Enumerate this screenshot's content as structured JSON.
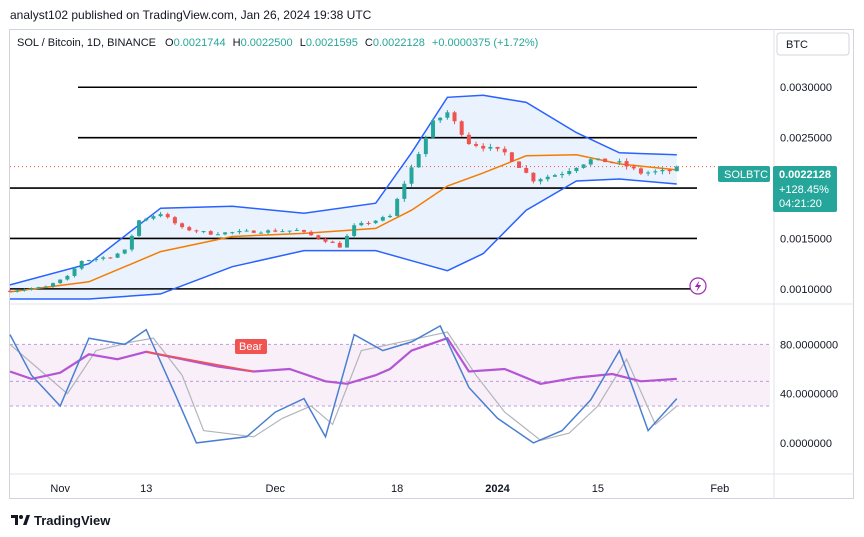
{
  "header": {
    "publish_line": "analyst102 published on TradingView.com, Jan 26, 2024 19:38 UTC"
  },
  "legend": {
    "symbol": "SOL / Bitcoin, 1D, BINANCE",
    "o_label": "O",
    "o_value": "0.0021744",
    "h_label": "H",
    "h_value": "0.0022500",
    "l_label": "L",
    "l_value": "0.0021595",
    "c_label": "C",
    "c_value": "0.0022128",
    "change": "+0.0000375 (+1.72%)"
  },
  "currency_button": "BTC",
  "price_badge": {
    "symbol": "SOLBTC",
    "price": "0.0022128",
    "change_pct": "+128.45%",
    "countdown": "04:21:20"
  },
  "colors": {
    "up": "#26a69a",
    "down": "#ef5350",
    "bb_band": "#2962ff",
    "bb_fill": "#e3effc",
    "bb_basis": "#f57c00",
    "rsi": "#b455d4",
    "stoch_k": "#4a7fd0",
    "stoch_d": "#b2b5be",
    "bear_label": "#f05350",
    "badge": "#26a69a"
  },
  "footer": {
    "brand": "TradingView"
  },
  "chart_data": [
    {
      "type": "candlestick",
      "pane": "price",
      "symbol": "SOLBTC",
      "interval": "1D",
      "y_ticks": [
        "0.0030000",
        "0.0025000",
        "0.0020000",
        "0.0015000",
        "0.0010000"
      ],
      "y_tick_values": [
        0.003,
        0.0025,
        0.002,
        0.0015,
        0.001
      ],
      "ylim": [
        0.00086,
        0.0033
      ],
      "x_ticks": [
        "Nov",
        "13",
        "Dec",
        "18",
        "2024",
        "15",
        "Feb"
      ],
      "x_tick_dates": [
        "2023-11-01",
        "2023-11-13",
        "2023-12-01",
        "2023-12-18",
        "2024-01-01",
        "2024-01-15",
        "2024-02-01"
      ],
      "date_start": "2023-10-25",
      "date_end": "2024-02-08",
      "horizontal_levels": [
        0.003,
        0.0025,
        0.002,
        0.0015,
        0.001
      ],
      "last_price": 0.0022128,
      "anchors": [
        [
          "2023-10-25",
          0.00098
        ],
        [
          "2023-10-30",
          0.00102
        ],
        [
          "2023-11-02",
          0.00112
        ],
        [
          "2023-11-04",
          0.00128
        ],
        [
          "2023-11-08",
          0.00132
        ],
        [
          "2023-11-10",
          0.00138
        ],
        [
          "2023-11-12",
          0.00168
        ],
        [
          "2023-11-15",
          0.00175
        ],
        [
          "2023-11-18",
          0.0016
        ],
        [
          "2023-11-22",
          0.00155
        ],
        [
          "2023-11-28",
          0.00157
        ],
        [
          "2023-12-04",
          0.00158
        ],
        [
          "2023-12-08",
          0.00148
        ],
        [
          "2023-12-10",
          0.00142
        ],
        [
          "2023-12-12",
          0.00162
        ],
        [
          "2023-12-17",
          0.00172
        ],
        [
          "2023-12-19",
          0.00205
        ],
        [
          "2023-12-23",
          0.00265
        ],
        [
          "2023-12-25",
          0.00275
        ],
        [
          "2023-12-28",
          0.00245
        ],
        [
          "2024-01-02",
          0.00235
        ],
        [
          "2024-01-06",
          0.00208
        ],
        [
          "2024-01-10",
          0.00215
        ],
        [
          "2024-01-14",
          0.00228
        ],
        [
          "2024-01-18",
          0.00225
        ],
        [
          "2024-01-21",
          0.00215
        ],
        [
          "2024-01-25",
          0.00217
        ],
        [
          "2024-01-26",
          0.00221
        ]
      ],
      "bollinger": {
        "upper": [
          [
            "2023-10-25",
            0.00104
          ],
          [
            "2023-11-05",
            0.00125
          ],
          [
            "2023-11-15",
            0.0018
          ],
          [
            "2023-11-25",
            0.00182
          ],
          [
            "2023-12-05",
            0.00175
          ],
          [
            "2023-12-15",
            0.00185
          ],
          [
            "2023-12-20",
            0.00235
          ],
          [
            "2023-12-25",
            0.0029
          ],
          [
            "2023-12-30",
            0.00292
          ],
          [
            "2024-01-05",
            0.00285
          ],
          [
            "2024-01-12",
            0.00255
          ],
          [
            "2024-01-18",
            0.00235
          ],
          [
            "2024-01-26",
            0.00233
          ]
        ],
        "basis": [
          [
            "2023-10-25",
            0.00097
          ],
          [
            "2023-11-05",
            0.00107
          ],
          [
            "2023-11-15",
            0.00137
          ],
          [
            "2023-11-25",
            0.00152
          ],
          [
            "2023-12-05",
            0.00155
          ],
          [
            "2023-12-15",
            0.0016
          ],
          [
            "2023-12-20",
            0.00178
          ],
          [
            "2023-12-25",
            0.00202
          ],
          [
            "2023-12-30",
            0.00215
          ],
          [
            "2024-01-05",
            0.00232
          ],
          [
            "2024-01-12",
            0.00233
          ],
          [
            "2024-01-18",
            0.00224
          ],
          [
            "2024-01-26",
            0.00218
          ]
        ],
        "lower": [
          [
            "2023-10-25",
            0.0009
          ],
          [
            "2023-11-05",
            0.0009
          ],
          [
            "2023-11-15",
            0.00095
          ],
          [
            "2023-11-25",
            0.00122
          ],
          [
            "2023-12-05",
            0.00138
          ],
          [
            "2023-12-15",
            0.00138
          ],
          [
            "2023-12-20",
            0.00128
          ],
          [
            "2023-12-25",
            0.00118
          ],
          [
            "2023-12-30",
            0.00135
          ],
          [
            "2024-01-05",
            0.00178
          ],
          [
            "2024-01-12",
            0.00207
          ],
          [
            "2024-01-18",
            0.00209
          ],
          [
            "2024-01-26",
            0.00204
          ]
        ]
      },
      "marker_icon": "lightning-icon"
    },
    {
      "type": "line",
      "pane": "oscillator",
      "y_ticks": [
        "80.0000000",
        "40.0000000",
        "0.0000000"
      ],
      "y_tick_values": [
        80,
        40,
        0
      ],
      "ylim": [
        -22,
        112
      ],
      "bands": {
        "upper": 80,
        "middle": 50,
        "lower": 30
      },
      "annotation": "Bear",
      "series": [
        {
          "role": "rsi",
          "values": [
            [
              "2023-10-25",
              58
            ],
            [
              "2023-10-28",
              52
            ],
            [
              "2023-11-01",
              57
            ],
            [
              "2023-11-05",
              72
            ],
            [
              "2023-11-09",
              68
            ],
            [
              "2023-11-13",
              74
            ],
            [
              "2023-11-18",
              68
            ],
            [
              "2023-11-23",
              62
            ],
            [
              "2023-11-28",
              58
            ],
            [
              "2023-12-03",
              60
            ],
            [
              "2023-12-08",
              50
            ],
            [
              "2023-12-11",
              48
            ],
            [
              "2023-12-15",
              55
            ],
            [
              "2023-12-17",
              60
            ],
            [
              "2023-12-20",
              75
            ],
            [
              "2023-12-25",
              85
            ],
            [
              "2023-12-28",
              58
            ],
            [
              "2024-01-02",
              60
            ],
            [
              "2024-01-07",
              48
            ],
            [
              "2024-01-12",
              53
            ],
            [
              "2024-01-17",
              56
            ],
            [
              "2024-01-21",
              50
            ],
            [
              "2024-01-26",
              52
            ]
          ]
        },
        {
          "role": "stoch_k",
          "values": [
            [
              "2023-10-25",
              88
            ],
            [
              "2023-10-28",
              55
            ],
            [
              "2023-11-01",
              30
            ],
            [
              "2023-11-05",
              85
            ],
            [
              "2023-11-10",
              80
            ],
            [
              "2023-11-13",
              92
            ],
            [
              "2023-11-17",
              40
            ],
            [
              "2023-11-20",
              0
            ],
            [
              "2023-11-27",
              5
            ],
            [
              "2023-12-01",
              25
            ],
            [
              "2023-12-05",
              36
            ],
            [
              "2023-12-08",
              5
            ],
            [
              "2023-12-12",
              88
            ],
            [
              "2023-12-16",
              75
            ],
            [
              "2023-12-20",
              82
            ],
            [
              "2023-12-24",
              95
            ],
            [
              "2023-12-28",
              45
            ],
            [
              "2024-01-01",
              20
            ],
            [
              "2024-01-06",
              0
            ],
            [
              "2024-01-10",
              10
            ],
            [
              "2024-01-14",
              35
            ],
            [
              "2024-01-18",
              75
            ],
            [
              "2024-01-22",
              10
            ],
            [
              "2024-01-26",
              36
            ]
          ]
        },
        {
          "role": "stoch_d",
          "values": [
            [
              "2023-10-25",
              80
            ],
            [
              "2023-10-29",
              60
            ],
            [
              "2023-11-02",
              40
            ],
            [
              "2023-11-06",
              75
            ],
            [
              "2023-11-11",
              82
            ],
            [
              "2023-11-14",
              85
            ],
            [
              "2023-11-18",
              55
            ],
            [
              "2023-11-21",
              10
            ],
            [
              "2023-11-28",
              5
            ],
            [
              "2023-12-02",
              20
            ],
            [
              "2023-12-06",
              30
            ],
            [
              "2023-12-09",
              15
            ],
            [
              "2023-12-13",
              75
            ],
            [
              "2023-12-17",
              80
            ],
            [
              "2023-12-21",
              85
            ],
            [
              "2023-12-25",
              90
            ],
            [
              "2023-12-29",
              55
            ],
            [
              "2024-01-02",
              25
            ],
            [
              "2024-01-07",
              2
            ],
            [
              "2024-01-11",
              8
            ],
            [
              "2024-01-15",
              30
            ],
            [
              "2024-01-19",
              68
            ],
            [
              "2024-01-23",
              15
            ],
            [
              "2024-01-26",
              30
            ]
          ]
        }
      ]
    }
  ]
}
